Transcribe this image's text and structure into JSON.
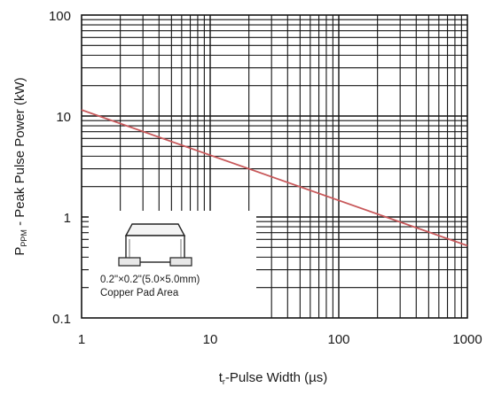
{
  "chart_data": {
    "type": "line",
    "title": "",
    "xscale": "log",
    "yscale": "log",
    "xlim": [
      1,
      1000
    ],
    "ylim": [
      0.1,
      100
    ],
    "grid": true,
    "xlabel": {
      "t_prefix": "t",
      "subscript": "r",
      "text": "-Pulse Width (µs)"
    },
    "ylabel": {
      "p_prefix": "P",
      "subscript": "PPM",
      "text": " - Peak Pulse Power (kW)"
    },
    "x_ticks": [
      {
        "value": 1,
        "label": "1"
      },
      {
        "value": 10,
        "label": "10"
      },
      {
        "value": 100,
        "label": "100"
      },
      {
        "value": 1000,
        "label": "1000"
      }
    ],
    "y_ticks": [
      {
        "value": 0.1,
        "label": "0.1"
      },
      {
        "value": 1,
        "label": "1"
      },
      {
        "value": 10,
        "label": "10"
      },
      {
        "value": 100,
        "label": "100"
      }
    ],
    "series": [
      {
        "color": "#c8585a",
        "x": [
          1,
          1000
        ],
        "y": [
          11.5,
          0.52
        ]
      }
    ],
    "annotation": {
      "line1": "0.2\"×0.2\"(5.0×5.0mm)",
      "line2": "Copper Pad Area"
    }
  }
}
